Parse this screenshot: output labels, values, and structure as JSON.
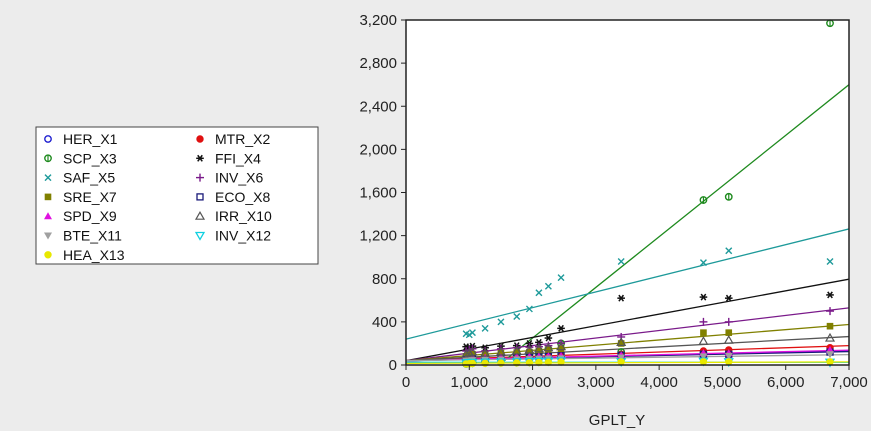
{
  "chart_data": {
    "type": "scatter",
    "xlabel": "GPLT_Y",
    "ylabel": "",
    "xlim": [
      0,
      7000
    ],
    "ylim": [
      0,
      3200
    ],
    "xticks": [
      0,
      1000,
      2000,
      3000,
      4000,
      5000,
      6000,
      7000
    ],
    "yticks": [
      0,
      400,
      800,
      1200,
      1600,
      2000,
      2400,
      2800,
      3200
    ],
    "xtick_labels": [
      "0",
      "1,000",
      "2,000",
      "3,000",
      "4,000",
      "5,000",
      "6,000",
      "7,000"
    ],
    "ytick_labels": [
      "0",
      "400",
      "800",
      "1,200",
      "1,600",
      "2,000",
      "2,400",
      "2,800",
      "3,200"
    ],
    "legend_position": "left",
    "grid": false,
    "x": [
      950,
      1000,
      1050,
      1250,
      1500,
      1750,
      1950,
      2100,
      2250,
      2450,
      3400,
      4700,
      5100,
      6700
    ],
    "series": [
      {
        "name": "HER_X1",
        "marker": "circle-open",
        "color": "#1f1fd0",
        "values": [
          60,
          62,
          64,
          66,
          70,
          72,
          74,
          76,
          78,
          80,
          95,
          110,
          115,
          130
        ],
        "fit": [
          40,
          0.013
        ]
      },
      {
        "name": "MTR_X2",
        "marker": "circle-filled",
        "color": "#e01010",
        "values": [
          55,
          58,
          60,
          62,
          68,
          72,
          75,
          78,
          80,
          85,
          100,
          130,
          140,
          160
        ],
        "fit": [
          40,
          0.02
        ]
      },
      {
        "name": "SCP_X3",
        "marker": "circle-dot",
        "color": "#1e8a1e",
        "values": [
          10,
          15,
          20,
          30,
          50,
          80,
          100,
          120,
          150,
          200,
          120,
          1530,
          1560,
          3170
        ],
        "fit": [
          -690,
          0.47
        ]
      },
      {
        "name": "FFI_X4",
        "marker": "asterisk",
        "color": "#111111",
        "values": [
          170,
          165,
          175,
          160,
          175,
          180,
          200,
          210,
          250,
          340,
          620,
          630,
          620,
          650
        ],
        "fit": [
          40,
          0.108
        ]
      },
      {
        "name": "SAF_X5",
        "marker": "x",
        "color": "#1e9a9a",
        "values": [
          290,
          280,
          300,
          340,
          400,
          450,
          520,
          670,
          730,
          810,
          960,
          950,
          1060,
          960
        ],
        "fit": [
          240,
          0.146
        ]
      },
      {
        "name": "INV_X6",
        "marker": "plus",
        "color": "#7a1a8a",
        "values": [
          130,
          140,
          150,
          130,
          150,
          160,
          165,
          170,
          180,
          200,
          260,
          400,
          400,
          500
        ],
        "fit": [
          40,
          0.07
        ]
      },
      {
        "name": "SRE_X7",
        "marker": "square-filled",
        "color": "#808000",
        "values": [
          80,
          90,
          100,
          95,
          110,
          115,
          120,
          130,
          140,
          150,
          200,
          300,
          300,
          360
        ],
        "fit": [
          40,
          0.048
        ]
      },
      {
        "name": "ECO_X8",
        "marker": "square-open",
        "color": "#1a1a7a",
        "values": [
          50,
          55,
          60,
          55,
          65,
          70,
          70,
          75,
          80,
          85,
          90,
          100,
          100,
          120
        ],
        "fit": [
          40,
          0.012
        ]
      },
      {
        "name": "SPD_X9",
        "marker": "triangle-filled",
        "color": "#e010e0",
        "values": [
          60,
          65,
          70,
          68,
          72,
          75,
          78,
          80,
          82,
          85,
          90,
          110,
          110,
          140
        ],
        "fit": [
          40,
          0.014
        ]
      },
      {
        "name": "IRR_X10",
        "marker": "triangle-open",
        "color": "#555555",
        "values": [
          100,
          110,
          120,
          110,
          120,
          130,
          140,
          150,
          160,
          170,
          210,
          220,
          230,
          250
        ],
        "fit": [
          40,
          0.032
        ]
      },
      {
        "name": "BTE_X11",
        "marker": "triangle-down-filled",
        "color": "#a0a0a0",
        "values": [
          40,
          42,
          45,
          48,
          50,
          52,
          55,
          58,
          60,
          62,
          70,
          80,
          85,
          100
        ],
        "fit": [
          40,
          0.008
        ]
      },
      {
        "name": "INV_X12",
        "marker": "triangle-down-open",
        "color": "#10d0e0",
        "values": [
          20,
          22,
          24,
          26,
          28,
          30,
          32,
          34,
          36,
          38,
          30,
          35,
          30,
          25
        ],
        "fit": [
          25,
          0.0
        ]
      },
      {
        "name": "HEA_X13",
        "marker": "circle-filled",
        "color": "#e8e800",
        "values": [
          10,
          12,
          14,
          16,
          18,
          20,
          22,
          24,
          26,
          28,
          30,
          30,
          30,
          30
        ],
        "fit": [
          15,
          0.002
        ]
      }
    ]
  }
}
